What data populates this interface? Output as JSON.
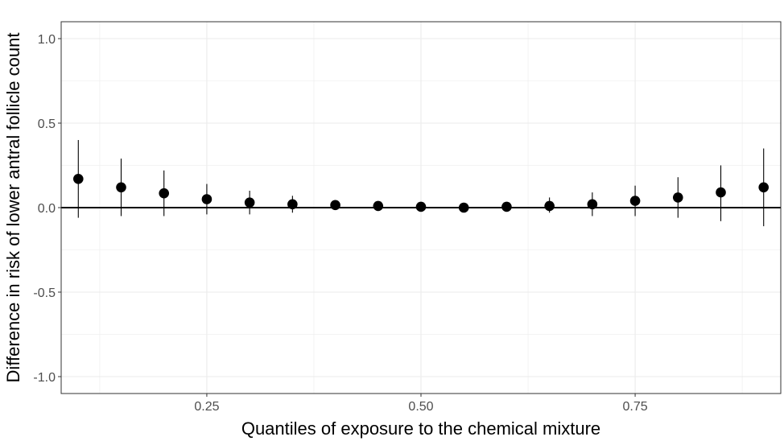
{
  "chart_data": {
    "type": "scatter",
    "title": "",
    "xlabel": "Quantiles of exposure to the chemical mixture",
    "ylabel": "Difference in risk of lower antral follicle count",
    "xlim": [
      0.08,
      0.92
    ],
    "ylim": [
      -1.1,
      1.1
    ],
    "x_ticks": [
      0.25,
      0.5,
      0.75
    ],
    "x_tick_labels": [
      "0.25",
      "0.50",
      "0.75"
    ],
    "y_ticks": [
      -1.0,
      -0.5,
      0.0,
      0.5,
      1.0
    ],
    "y_tick_labels": [
      "-1.0",
      "-0.5",
      "0.0",
      "0.5",
      "1.0"
    ],
    "grid": true,
    "reference_line_y": 0,
    "series": [
      {
        "x": [
          0.1,
          0.15,
          0.2,
          0.25,
          0.3,
          0.35,
          0.4,
          0.45,
          0.5,
          0.55,
          0.6,
          0.65,
          0.7,
          0.75,
          0.8,
          0.85,
          0.9
        ],
        "y": [
          0.17,
          0.12,
          0.085,
          0.05,
          0.03,
          0.02,
          0.015,
          0.01,
          0.005,
          0.0,
          0.005,
          0.01,
          0.02,
          0.04,
          0.06,
          0.09,
          0.12
        ],
        "lower": [
          -0.06,
          -0.05,
          -0.05,
          -0.04,
          -0.04,
          -0.03,
          -0.01,
          -0.005,
          -0.005,
          -0.01,
          -0.01,
          -0.03,
          -0.05,
          -0.05,
          -0.06,
          -0.08,
          -0.11
        ],
        "upper": [
          0.4,
          0.29,
          0.22,
          0.14,
          0.1,
          0.07,
          0.03,
          0.02,
          0.01,
          0.01,
          0.02,
          0.06,
          0.09,
          0.13,
          0.18,
          0.25,
          0.35
        ]
      }
    ]
  }
}
